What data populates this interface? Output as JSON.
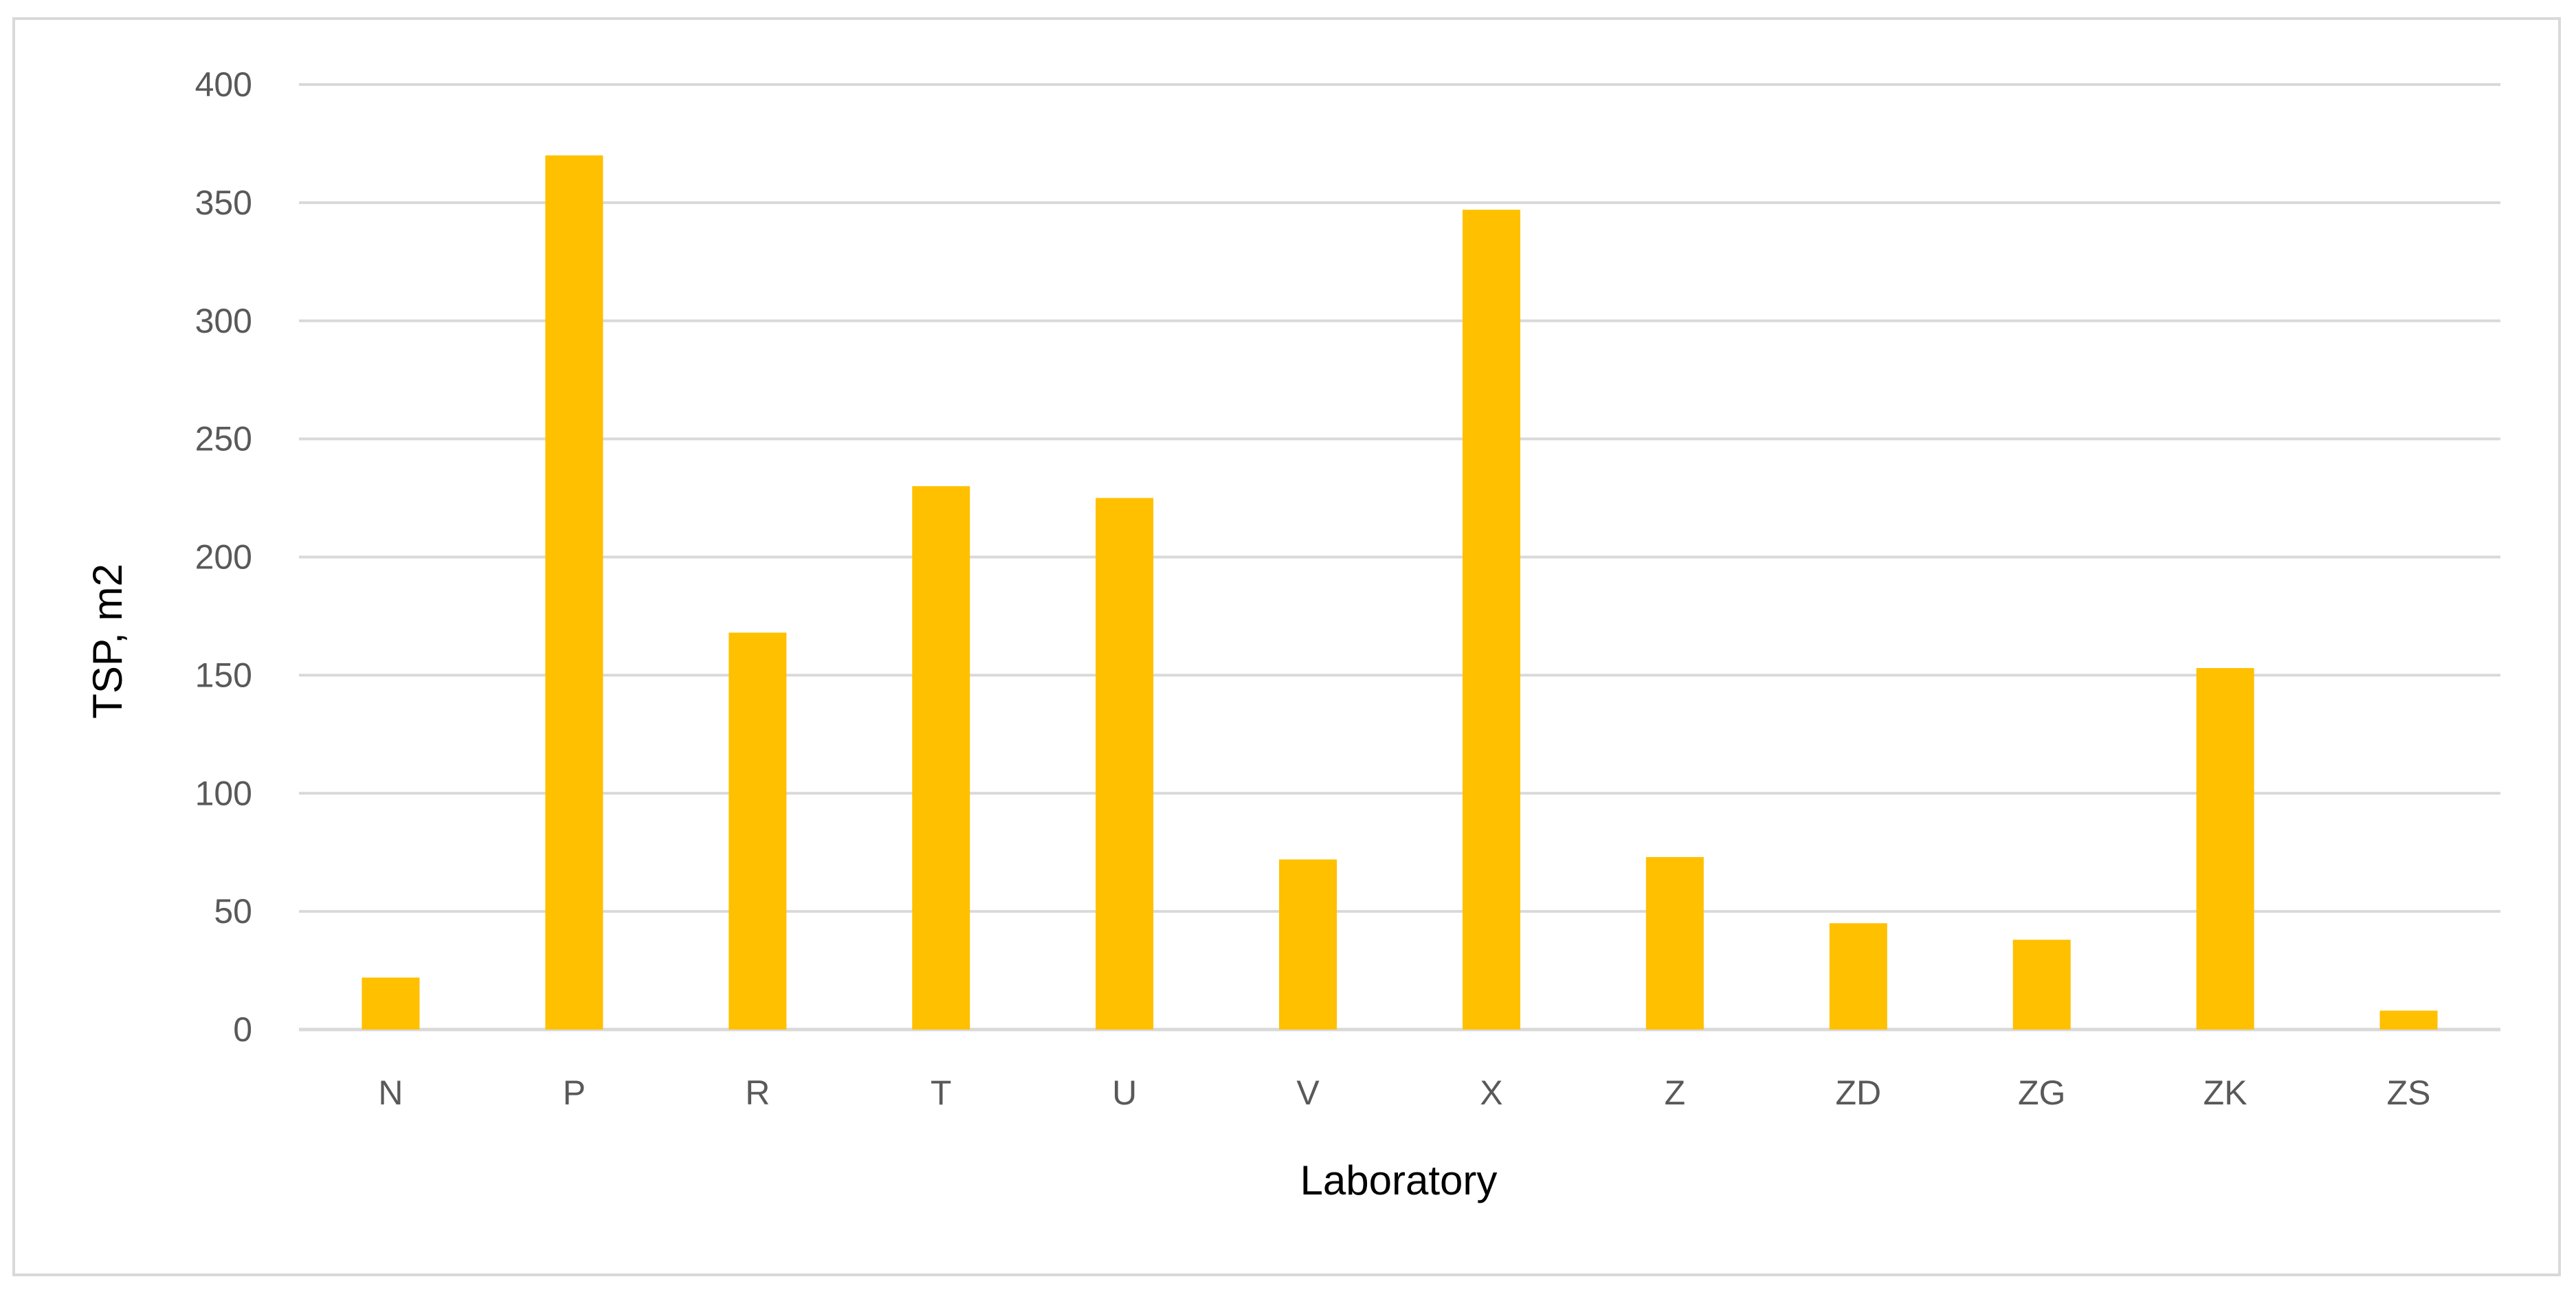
{
  "chart_data": {
    "type": "bar",
    "xlabel": "Laboratory",
    "ylabel": "TSP, m2",
    "ylim": [
      0,
      400
    ],
    "yticks": [
      "0",
      "50",
      "100",
      "150",
      "200",
      "250",
      "300",
      "350",
      "400"
    ],
    "grid": true,
    "legend": "none",
    "bar_color": "#FFC000",
    "categories": [
      "N",
      "P",
      "R",
      "T",
      "U",
      "V",
      "X",
      "Z",
      "ZD",
      "ZG",
      "ZK",
      "ZS"
    ],
    "values": [
      22,
      370,
      168,
      230,
      225,
      72,
      347,
      73,
      45,
      38,
      153,
      8
    ]
  }
}
